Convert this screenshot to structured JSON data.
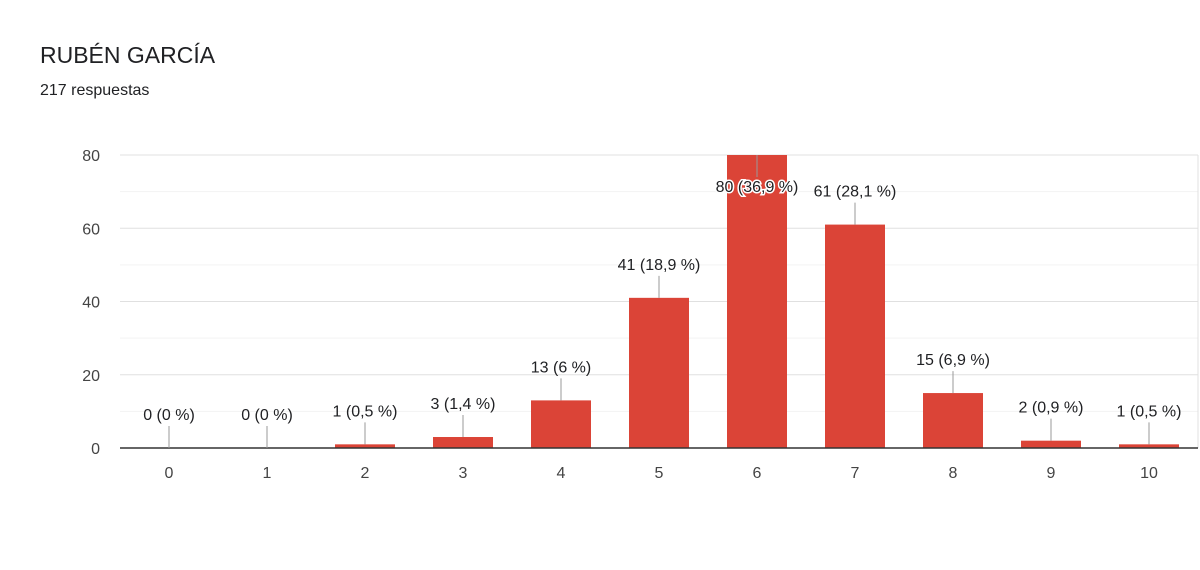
{
  "header": {
    "title": "RUBÉN GARCÍA",
    "subtitle": "217 respuestas"
  },
  "chart_data": {
    "type": "bar",
    "categories": [
      "0",
      "1",
      "2",
      "3",
      "4",
      "5",
      "6",
      "7",
      "8",
      "9",
      "10"
    ],
    "values": [
      0,
      0,
      1,
      3,
      13,
      41,
      80,
      61,
      15,
      2,
      1
    ],
    "data_labels": [
      "0 (0 %)",
      "0 (0 %)",
      "1 (0,5 %)",
      "3 (1,4 %)",
      "13 (6 %)",
      "41 (18,9 %)",
      "80 (36,9 %)",
      "61 (28,1 %)",
      "15 (6,9 %)",
      "2 (0,9 %)",
      "1 (0,5 %)"
    ],
    "y_ticks": [
      0,
      20,
      40,
      60,
      80
    ],
    "ylim": [
      0,
      80
    ],
    "grid": true,
    "bar_color": "#db4437",
    "xlabel": "",
    "ylabel": ""
  }
}
